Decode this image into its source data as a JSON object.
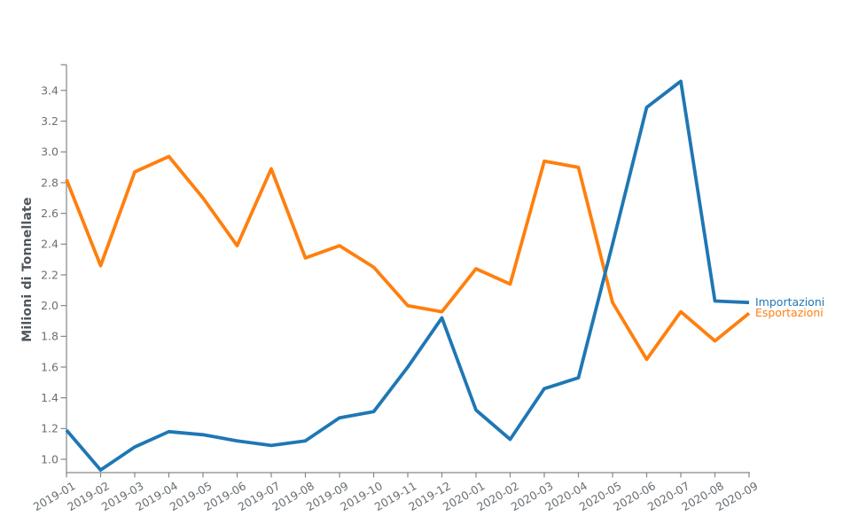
{
  "chart_data": {
    "type": "line",
    "title": "",
    "xlabel": "",
    "ylabel": "Milioni di Tonnellate",
    "categories": [
      "2019-01",
      "2019-02",
      "2019-03",
      "2019-04",
      "2019-05",
      "2019-06",
      "2019-07",
      "2019-08",
      "2019-09",
      "2019-10",
      "2019-11",
      "2019-12",
      "2020-01",
      "2020-02",
      "2020-03",
      "2020-04",
      "2020-05",
      "2020-06",
      "2020-07",
      "2020-08",
      "2020-09"
    ],
    "series": [
      {
        "name": "Importazioni",
        "color": "#1f77b4",
        "values": [
          1.19,
          0.93,
          1.08,
          1.18,
          1.16,
          1.12,
          1.09,
          1.12,
          1.27,
          1.31,
          1.6,
          1.92,
          1.32,
          1.13,
          1.46,
          1.53,
          2.4,
          3.29,
          3.46,
          2.03,
          2.02
        ]
      },
      {
        "name": "Esportazioni",
        "color": "#ff7f0e",
        "values": [
          2.82,
          2.26,
          2.87,
          2.97,
          2.7,
          2.39,
          2.89,
          2.31,
          2.39,
          2.25,
          2.0,
          1.96,
          2.24,
          2.14,
          2.94,
          2.9,
          2.02,
          1.65,
          1.96,
          1.77,
          1.95
        ]
      }
    ],
    "yticks": [
      1.0,
      1.2,
      1.4,
      1.6,
      1.8,
      2.0,
      2.2,
      2.4,
      2.6,
      2.8,
      3.0,
      3.2,
      3.4
    ],
    "ytick_labels": [
      "1.0",
      "1.2",
      "1.4",
      "1.6",
      "1.8",
      "2.0",
      "2.2",
      "2.4",
      "2.6",
      "2.8",
      "3.0",
      "3.2",
      "3.4"
    ],
    "ylim": [
      0.91,
      3.57
    ],
    "grid": false,
    "legend_position": "end-of-line-labels",
    "x_tick_rotation_deg": 30
  },
  "style_colors": {
    "spine": "#848689",
    "tick_label": "#696f74",
    "axis_title": "#4f565c",
    "background": "#ffffff"
  }
}
